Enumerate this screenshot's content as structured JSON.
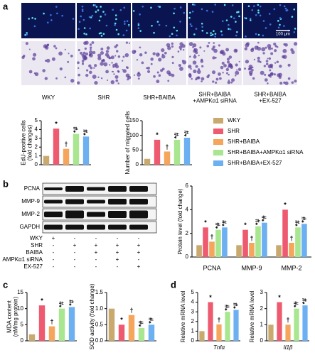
{
  "panels": [
    "a",
    "b",
    "c",
    "d"
  ],
  "image_labels": [
    "WKY",
    "SHR",
    "SHR+BAIBA",
    "SHR+BAIBA\n+AMPKα1 siRNA",
    "SHR+BAIBA\n+EX-527"
  ],
  "scale_bar": "100 μm",
  "legend": {
    "names": [
      "WKY",
      "SHR",
      "SHR+BAIBA",
      "SHR+BAIBA+AMPKα1 siRNA",
      "SHR+BAIBA+EX-527"
    ],
    "colors": [
      "#c9a96e",
      "#ee5a6f",
      "#f6a55c",
      "#a8e68f",
      "#6cb0f2"
    ]
  },
  "blot": {
    "bands": [
      "PCNA",
      "MMP-9",
      "MMP-2",
      "GAPDH"
    ],
    "rows": [
      {
        "label": "WKY",
        "signs": [
          "+",
          "-",
          "-",
          "-",
          "-"
        ]
      },
      {
        "label": "SHR",
        "signs": [
          "-",
          "+",
          "+",
          "+",
          "+"
        ]
      },
      {
        "label": "BAIBA",
        "signs": [
          "-",
          "-",
          "+",
          "+",
          "+"
        ]
      },
      {
        "label": "AMPKα1 siRNA",
        "signs": [
          "-",
          "-",
          "-",
          "+",
          "-"
        ]
      },
      {
        "label": "EX-527",
        "signs": [
          "-",
          "-",
          "-",
          "-",
          "+"
        ]
      }
    ]
  },
  "chart_data": [
    {
      "type": "bar",
      "ylabel": "EdU-positive cells\n(fold changes)",
      "ylim": [
        0,
        5
      ],
      "yticks": [
        0,
        1,
        2,
        3,
        4,
        5
      ],
      "values": [
        1.0,
        4.1,
        1.8,
        3.5,
        3.2
      ],
      "annotations": [
        null,
        "*",
        "†",
        "*#",
        "*#"
      ]
    },
    {
      "type": "bar",
      "ylabel": "Number of migrated cells",
      "ylim": [
        0,
        150
      ],
      "yticks": [
        0,
        50,
        100,
        150
      ],
      "values": [
        20,
        85,
        45,
        85,
        92
      ],
      "annotations": [
        null,
        "*",
        "†",
        "*#",
        "*#"
      ]
    },
    {
      "type": "grouped_bar",
      "ylabel": "Protein level (fold change)",
      "ylim": [
        0,
        6
      ],
      "yticks": [
        0,
        2,
        4,
        6
      ],
      "categories": [
        "PCNA",
        "MMP-9",
        "MMP-2"
      ],
      "series": [
        {
          "values": [
            1.0,
            1.0,
            1.0
          ],
          "annotations": [
            null,
            null,
            null
          ]
        },
        {
          "values": [
            2.5,
            2.3,
            4.0
          ],
          "annotations": [
            "*",
            "*",
            "*"
          ]
        },
        {
          "values": [
            1.3,
            1.2,
            1.2
          ],
          "annotations": [
            "†",
            "†",
            "†"
          ]
        },
        {
          "values": [
            2.3,
            2.6,
            2.5
          ],
          "annotations": [
            "*#",
            "*#",
            "*#"
          ]
        },
        {
          "values": [
            2.5,
            2.9,
            2.8
          ],
          "annotations": [
            "*#",
            "*#",
            "*#"
          ]
        }
      ]
    },
    {
      "type": "bar",
      "ylabel": "MDA content\n(nM/mg protein)",
      "ylim": [
        0,
        15
      ],
      "yticks": [
        0,
        5,
        10,
        15
      ],
      "values": [
        2,
        11,
        4.5,
        10,
        10.5
      ],
      "annotations": [
        null,
        "*",
        "†",
        "*#",
        "*#"
      ]
    },
    {
      "type": "bar",
      "ylabel": "SOD activity (fold change)",
      "ylim": [
        0,
        1.5
      ],
      "yticks": [
        {
          "value": 0,
          "label": "0.0"
        },
        0.5,
        {
          "value": 1,
          "label": "1.0"
        },
        1.5
      ],
      "values": [
        1.0,
        0.5,
        0.8,
        0.4,
        0.5
      ],
      "annotations": [
        null,
        "*",
        "†",
        "*#",
        "*#"
      ]
    },
    {
      "type": "bar",
      "ylabel": "Relative mRNA level",
      "xlabel": "Tnfα",
      "ylim": [
        0,
        5
      ],
      "yticks": [
        0,
        1,
        2,
        3,
        4,
        5
      ],
      "values": [
        1,
        4,
        1.7,
        3,
        3.2
      ],
      "annotations": [
        null,
        "*",
        "†",
        "*#",
        "*#"
      ]
    },
    {
      "type": "bar",
      "ylabel": "Relative mRNA level",
      "xlabel": "Il1β",
      "ylim": [
        0,
        3
      ],
      "yticks": [
        0,
        1,
        2,
        3
      ],
      "values": [
        1,
        2.4,
        1.0,
        2.0,
        2.2
      ],
      "annotations": [
        null,
        "*",
        "†",
        "*#",
        "*#"
      ]
    }
  ]
}
